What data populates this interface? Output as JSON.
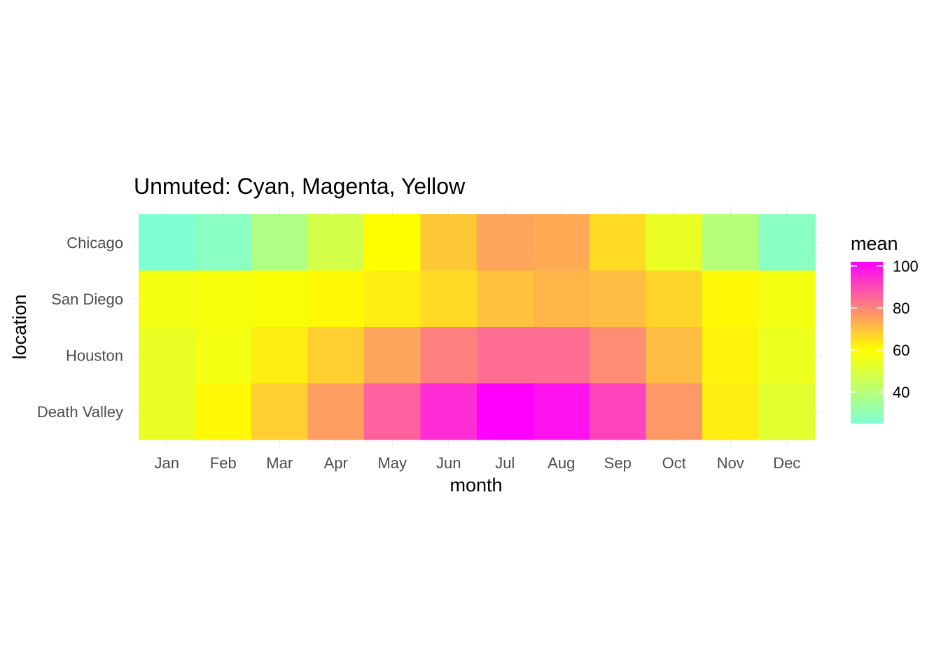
{
  "chart_data": {
    "type": "heatmap",
    "title": "Unmuted: Cyan, Magenta, Yellow",
    "xlabel": "month",
    "ylabel": "location",
    "x_categories": [
      "Jan",
      "Feb",
      "Mar",
      "Apr",
      "May",
      "Jun",
      "Jul",
      "Aug",
      "Sep",
      "Oct",
      "Nov",
      "Dec"
    ],
    "y_categories": [
      "Chicago",
      "San Diego",
      "Houston",
      "Death Valley"
    ],
    "values": [
      [
        25,
        28,
        38,
        48,
        60,
        69,
        75,
        74,
        66,
        54,
        40,
        28
      ],
      [
        57,
        58,
        59,
        61,
        63,
        66,
        70,
        72,
        71,
        67,
        61,
        57
      ],
      [
        54,
        57,
        63,
        68,
        75,
        81,
        84,
        84,
        79,
        71,
        62,
        55
      ],
      [
        54,
        61,
        68,
        76,
        86,
        95,
        102,
        99,
        91,
        77,
        63,
        52
      ]
    ],
    "legend": {
      "title": "mean",
      "position": "right",
      "ticks": [
        "40",
        "60",
        "80",
        "100"
      ],
      "tick_values": [
        40,
        60,
        80,
        100
      ],
      "range": [
        25,
        102
      ]
    },
    "color_scale": {
      "colors": [
        "#7fffd4",
        "#ffff00",
        "#ff00ff"
      ],
      "stops": [
        25,
        60,
        102
      ]
    },
    "grid": true
  }
}
